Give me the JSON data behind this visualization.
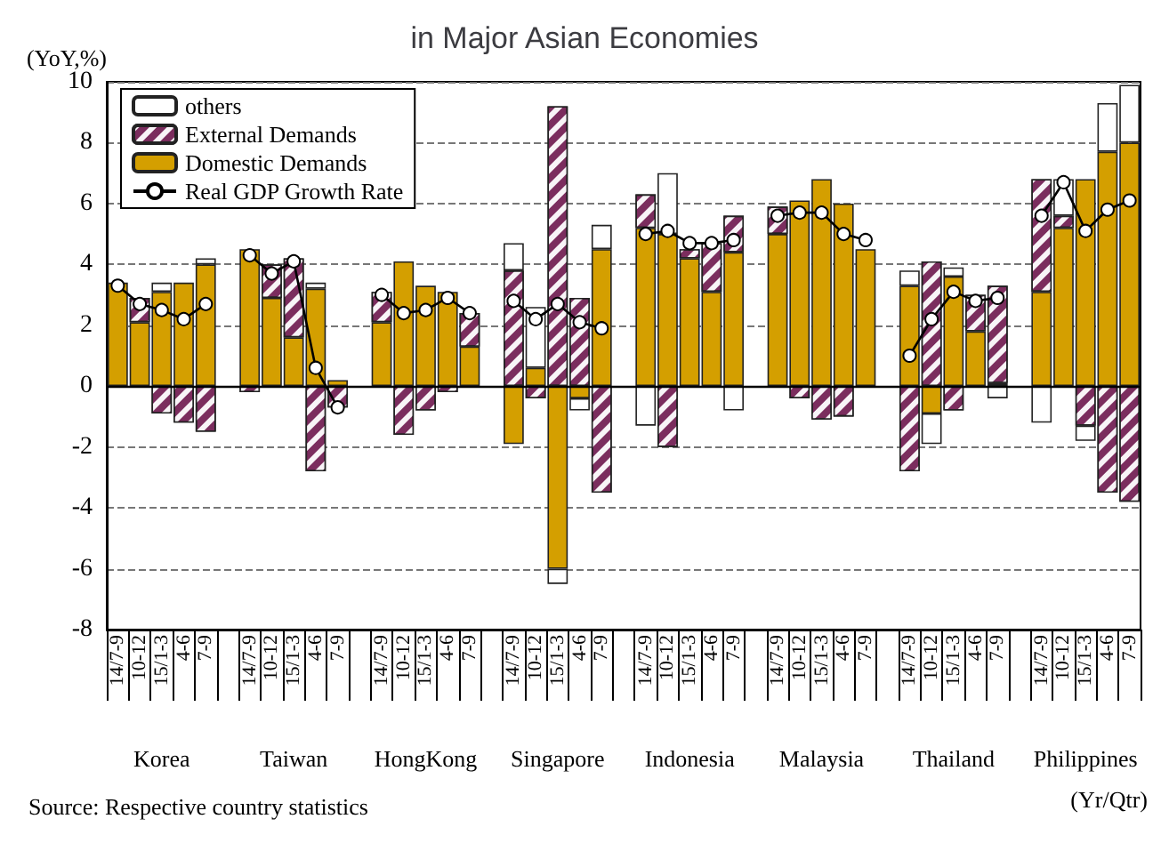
{
  "chart_data": {
    "type": "bar",
    "title": "in Major Asian Economies",
    "ylabel": "(YoY,%)",
    "xlabel": "(Yr/Qtr)",
    "categories": [
      "14/7-9",
      "10-12",
      "15/1-3",
      "4-6",
      "7-9",
      null,
      "14/7-9",
      "10-12",
      "15/1-3",
      "4-6",
      "7-9",
      null,
      "14/7-9",
      "10-12",
      "15/1-3",
      "4-6",
      "7-9",
      null,
      "14/7-9",
      "10-12",
      "15/1-3",
      "4-6",
      "7-9",
      null,
      "14/7-9",
      "10-12",
      "15/1-3",
      "4-6",
      "7-9",
      null,
      "14/7-9",
      "10-12",
      "15/1-3",
      "4-6",
      "7-9",
      null,
      "14/7-9",
      "10-12",
      "15/1-3",
      "4-6",
      "7-9",
      null,
      "14/7-9",
      "10-12",
      "15/1-3",
      "4-6",
      "7-9"
    ],
    "stacked": true,
    "series": [
      {
        "name": "Domestic Demands",
        "color": "#d49f00",
        "values": [
          3.4,
          2.1,
          3.1,
          3.4,
          4.0,
          null,
          4.5,
          2.9,
          1.6,
          3.2,
          0.2,
          null,
          2.1,
          4.1,
          3.3,
          3.1,
          1.3,
          null,
          -1.9,
          0.6,
          -6.0,
          -0.4,
          4.5,
          null,
          5.2,
          5.0,
          4.2,
          3.1,
          4.4,
          null,
          5.0,
          6.1,
          6.8,
          6.0,
          4.5,
          null,
          3.3,
          -0.9,
          3.6,
          1.8,
          0.1,
          null,
          3.1,
          5.2,
          6.8,
          7.7,
          8.0
        ]
      },
      {
        "name": "External Demands",
        "color": "#7b2d5e",
        "values": [
          null,
          0.8,
          -0.9,
          -1.2,
          -1.5,
          null,
          -0.2,
          1.1,
          2.6,
          -2.8,
          -0.7,
          null,
          1.0,
          -1.6,
          -0.8,
          -0.2,
          1.1,
          null,
          3.8,
          -0.4,
          9.2,
          2.9,
          -3.5,
          null,
          1.1,
          -2.0,
          0.3,
          1.6,
          1.2,
          null,
          0.9,
          -0.4,
          -1.1,
          -1.0,
          null,
          null,
          -2.8,
          4.1,
          -0.8,
          1.2,
          3.2,
          null,
          3.7,
          0.4,
          -1.3,
          -3.5,
          -3.8
        ]
      },
      {
        "name": "others",
        "color": "#ffffff",
        "values": [
          null,
          null,
          0.3,
          null,
          0.2,
          null,
          null,
          null,
          null,
          0.2,
          null,
          null,
          null,
          null,
          null,
          null,
          null,
          null,
          0.9,
          2.0,
          -0.5,
          -0.4,
          0.8,
          null,
          -1.3,
          2.0,
          null,
          null,
          -0.8,
          null,
          null,
          null,
          null,
          null,
          null,
          null,
          0.5,
          -1.0,
          0.3,
          null,
          -0.4,
          null,
          -1.2,
          1.2,
          -0.5,
          1.6,
          1.9
        ]
      },
      {
        "name": "Real GDP Growth Rate",
        "type": "line",
        "color": "#000000",
        "values": [
          3.3,
          2.7,
          2.5,
          2.2,
          2.7,
          null,
          4.3,
          3.7,
          4.1,
          0.6,
          -0.7,
          null,
          3.0,
          2.4,
          2.5,
          2.9,
          2.4,
          null,
          2.8,
          2.2,
          2.7,
          2.1,
          1.9,
          null,
          5.0,
          5.1,
          4.7,
          4.7,
          4.8,
          null,
          5.6,
          5.7,
          5.7,
          5.0,
          4.8,
          null,
          1.0,
          2.2,
          3.1,
          2.8,
          2.9,
          null,
          5.6,
          6.7,
          5.1,
          5.8,
          6.1
        ]
      }
    ],
    "ylim": [
      -8,
      10
    ],
    "yticks": [
      -8,
      -6,
      -4,
      -2,
      0,
      2,
      4,
      6,
      8,
      10
    ],
    "grid": "y",
    "legend": "top left",
    "marker": "circle",
    "ref_lines": [
      {
        "axis": "y",
        "value": 0
      }
    ],
    "annotations": [
      "Korea",
      "Taiwan",
      "HongKong",
      "Singapore",
      "Indonesia",
      "Malaysia",
      "Thailand",
      "Philippines",
      "Source: Respective country statistics"
    ]
  }
}
